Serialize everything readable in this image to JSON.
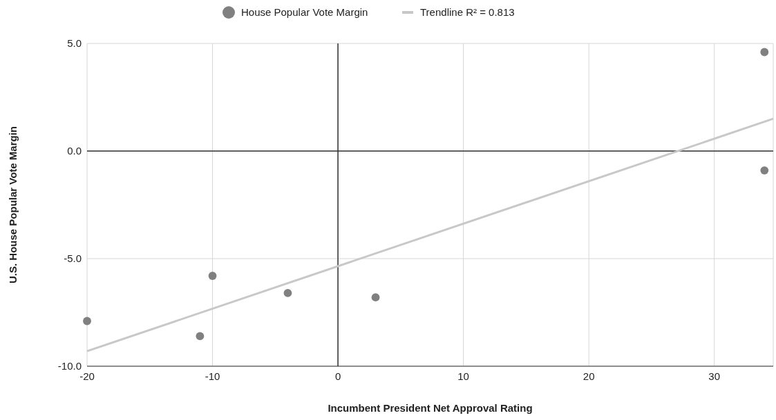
{
  "chart_data": {
    "type": "scatter",
    "xlabel": "Incumbent President Net Approval Rating",
    "ylabel": "U.S. House Popular Vote Margin",
    "x": [
      -20,
      -11,
      -10,
      -4,
      3,
      34,
      34
    ],
    "series": [
      {
        "name": "House Popular Vote Margin",
        "color": "#808080",
        "values": [
          -7.9,
          -8.6,
          -5.8,
          -6.6,
          -6.8,
          4.6,
          -0.9
        ]
      },
      {
        "name": "Trendline R² = 0.813",
        "type": "line",
        "marker": "none",
        "color": "#c8c8c8",
        "x": [
          -20,
          34.7
        ],
        "values": [
          -9.3,
          1.5
        ]
      }
    ],
    "xlim": [
      -20,
      34.7
    ],
    "xticks": [
      -20,
      -10,
      0,
      10,
      20,
      30
    ],
    "ylim": [
      -10,
      5
    ],
    "yticks": [
      {
        "value": -10,
        "label": "-10.0"
      },
      {
        "value": -5,
        "label": "-5.0"
      },
      {
        "value": 0,
        "label": "0.0"
      },
      {
        "value": 5,
        "label": "5.0"
      }
    ],
    "grid": true,
    "legend": "top",
    "marker": "circle"
  }
}
